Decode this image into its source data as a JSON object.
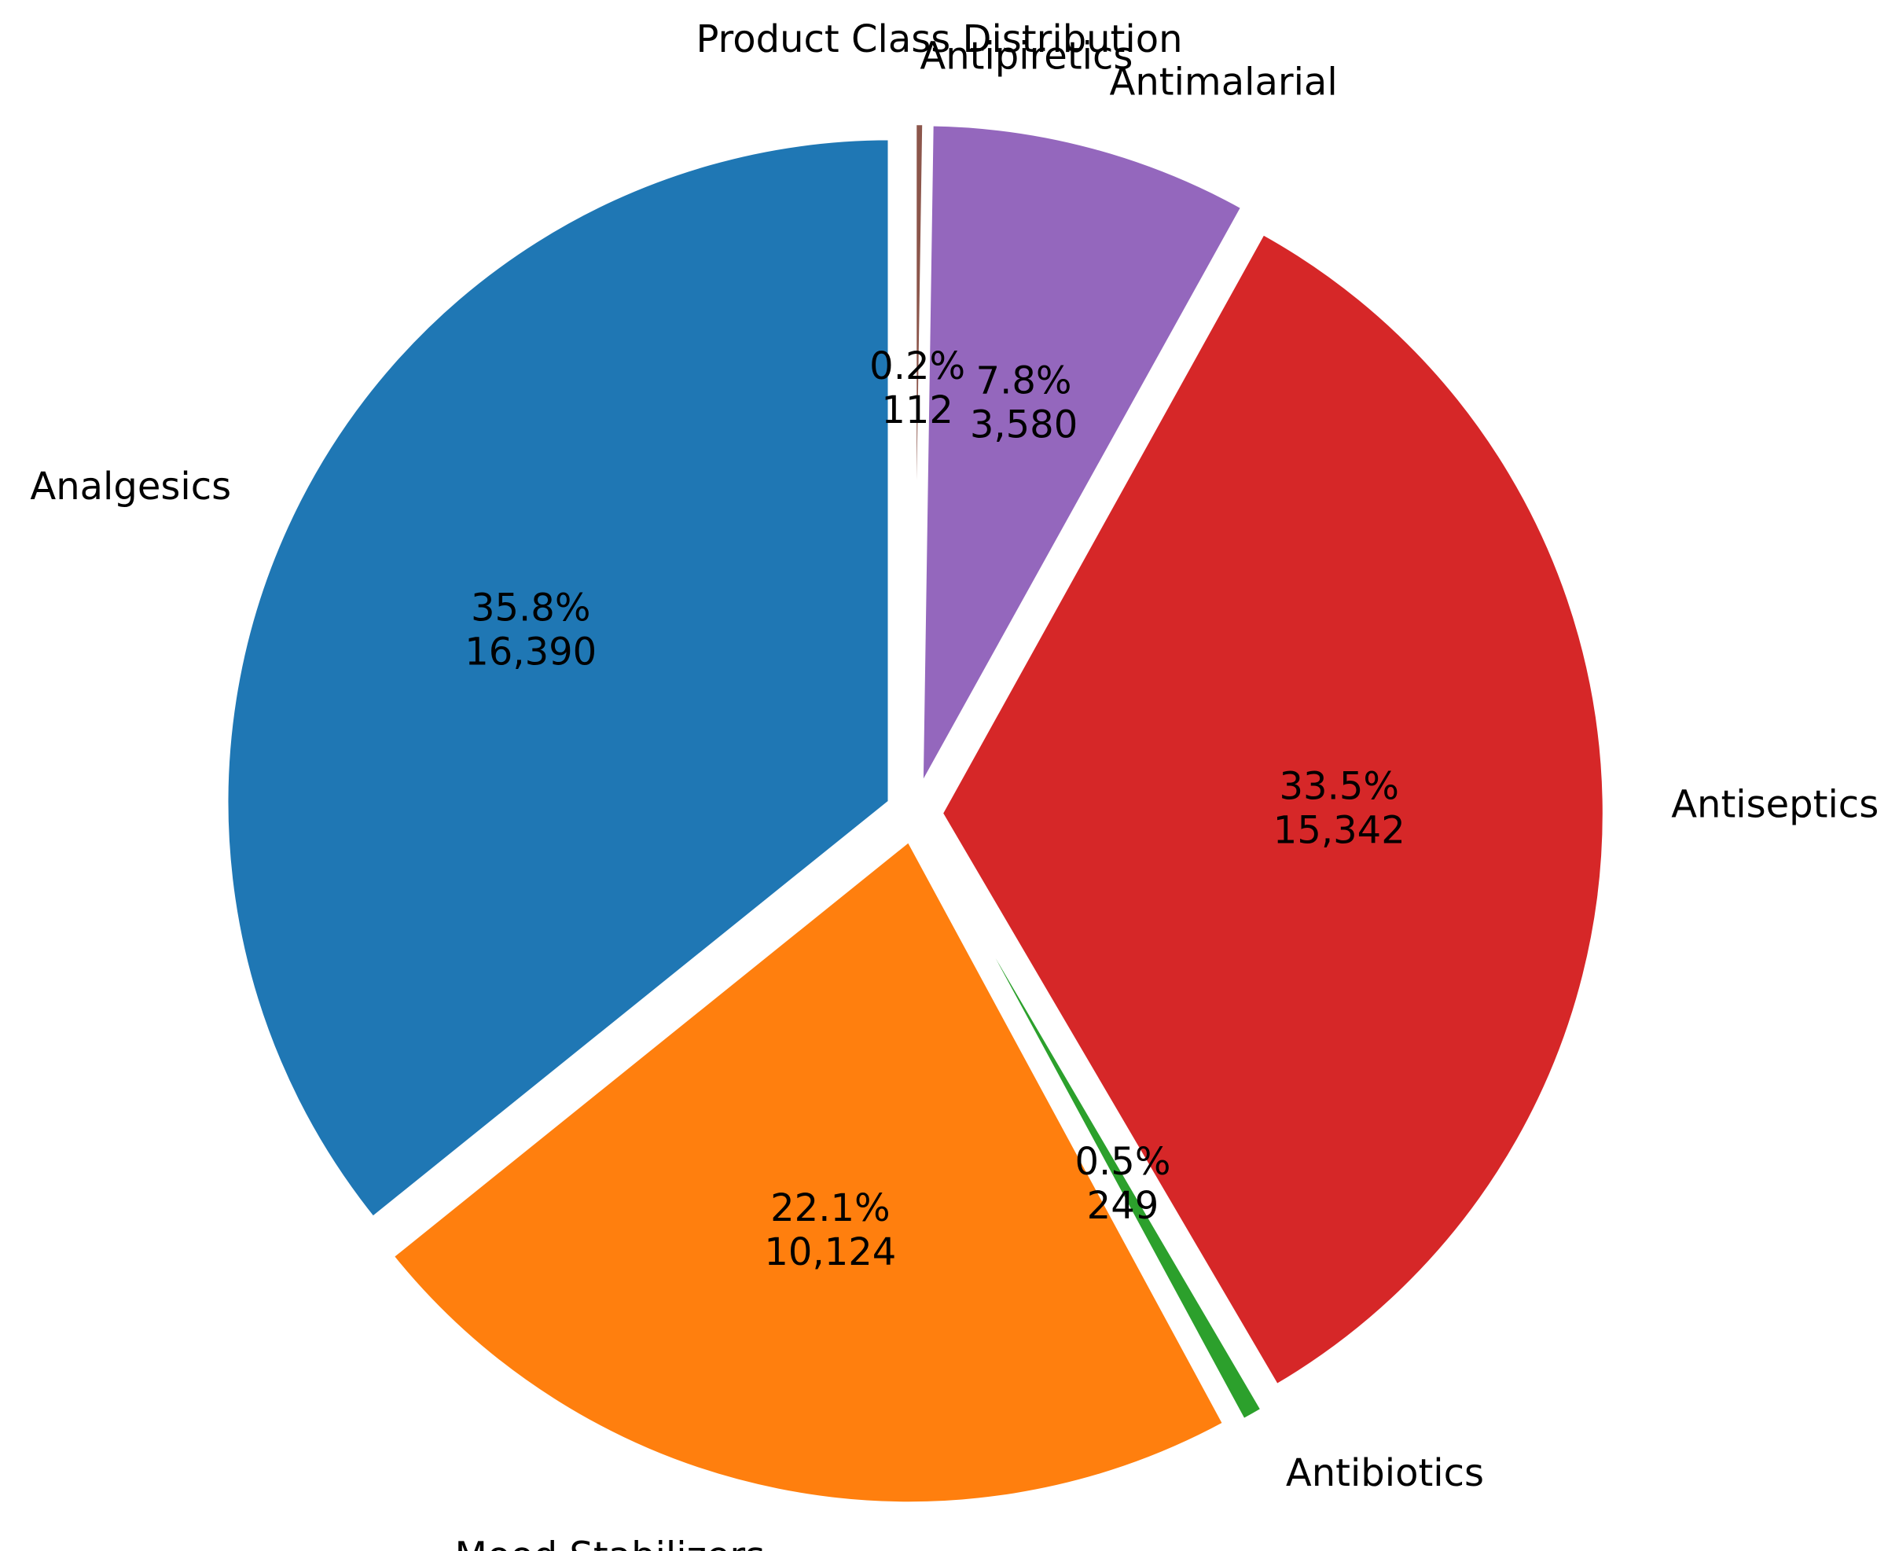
{
  "chart_data": {
    "type": "pie",
    "title": "Product Class Distribution",
    "start_angle_deg": 90,
    "direction": "counterclockwise",
    "exploded": true,
    "slices": [
      {
        "label": "Analgesics",
        "value": 16390,
        "value_label": "16,390",
        "percent_label": "35.8%",
        "color": "#1f77b4"
      },
      {
        "label": "Mood Stabilizers",
        "value": 10124,
        "value_label": "10,124",
        "percent_label": "22.1%",
        "color": "#ff7f0e"
      },
      {
        "label": "Antibiotics",
        "value": 249,
        "value_label": "249",
        "percent_label": "0.5%",
        "color": "#2ca02c"
      },
      {
        "label": "Antiseptics",
        "value": 15342,
        "value_label": "15,342",
        "percent_label": "33.5%",
        "color": "#d62728"
      },
      {
        "label": "Antimalarial",
        "value": 3580,
        "value_label": "3,580",
        "percent_label": "7.8%",
        "color": "#9467bd"
      },
      {
        "label": "Antipiretics",
        "value": 112,
        "value_label": "112",
        "percent_label": "0.2%",
        "color": "#8c564b"
      }
    ]
  }
}
